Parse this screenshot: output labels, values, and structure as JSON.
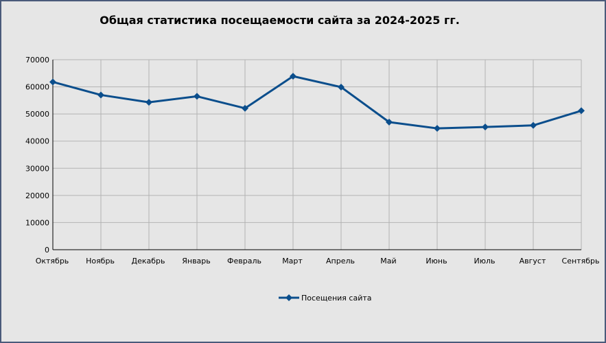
{
  "chart_data": {
    "type": "line",
    "title": "Общая статистика посещаемости сайта за 2024-2025 гг.",
    "xlabel": "",
    "ylabel": "",
    "categories": [
      "Октябрь",
      "Ноябрь",
      "Декабрь",
      "Январь",
      "Февраль",
      "Март",
      "Апрель",
      "Май",
      "Июнь",
      "Июль",
      "Август",
      "Сентябрь"
    ],
    "series": [
      {
        "name": "Посещения сайта",
        "values": [
          61800,
          57000,
          54300,
          56500,
          52100,
          63900,
          59900,
          47000,
          44700,
          45200,
          45800,
          51200
        ],
        "color": "#0b4e8c"
      }
    ],
    "ylim": [
      0,
      70000
    ],
    "yticks": [
      "0",
      "10000",
      "20000",
      "30000",
      "40000",
      "50000",
      "60000",
      "70000"
    ],
    "grid": true,
    "legend": "bottom",
    "marker": "diamond",
    "colors": {
      "background": "#e6e6e6",
      "border": "#4a5a7a",
      "grid": "#b3b3b3",
      "axis": "#000000"
    }
  }
}
